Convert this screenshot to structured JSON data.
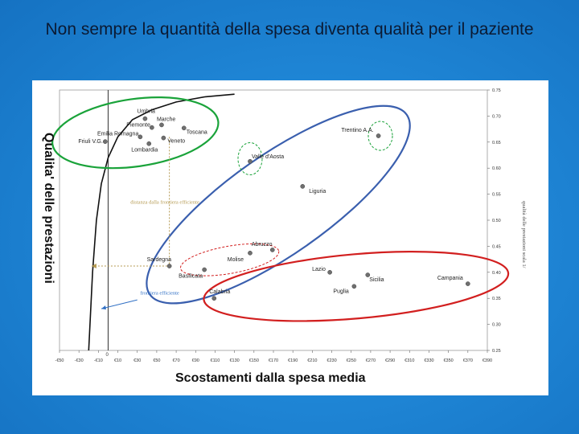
{
  "slide": {
    "title": "Non sempre la quantità della spesa diventa qualità per il paziente"
  },
  "colors": {
    "background": "#1f86d6",
    "frontier": "#111111",
    "green_group": "#1aa33a",
    "blue_group": "#3a5fae",
    "red_group": "#d21f1f",
    "annotation": "#b59a52",
    "annotation_blue": "#2f6fc4",
    "point": "#6f6f6f"
  },
  "chart_data": {
    "type": "scatter",
    "xlabel": "Scostamenti dalla spesa media",
    "ylabel": "Qualita' delle prestazioni",
    "y2label": "qualità delle prestazioni scala 1/",
    "x_ticks": [
      "-€50",
      "-€30",
      "-€10",
      "€10",
      "€30",
      "€50",
      "€70",
      "€90",
      "€110",
      "€130",
      "€150",
      "€170",
      "€190",
      "€210",
      "€230",
      "€250",
      "€270",
      "€290",
      "€310",
      "€330",
      "€350",
      "€370",
      "€390"
    ],
    "x_tick_values": [
      -50,
      -30,
      -10,
      10,
      30,
      50,
      70,
      90,
      110,
      130,
      150,
      170,
      190,
      210,
      230,
      250,
      270,
      290,
      310,
      330,
      350,
      370,
      390
    ],
    "y_ticks": [
      "0.25",
      "0.30",
      "0.35",
      "0.40",
      "0.45",
      "0.50",
      "0.55",
      "0.60",
      "0.65",
      "0.70",
      "0.75"
    ],
    "y_tick_values": [
      0.25,
      0.3,
      0.35,
      0.4,
      0.45,
      0.5,
      0.55,
      0.6,
      0.65,
      0.7,
      0.75
    ],
    "xlim": [
      -50,
      390
    ],
    "ylim": [
      0.25,
      0.75
    ],
    "zero_label": "0",
    "points": [
      {
        "label": "Umbria",
        "x": 38,
        "y": 0.695
      },
      {
        "label": "Marche",
        "x": 55,
        "y": 0.683
      },
      {
        "label": "Piemonte",
        "x": 45,
        "y": 0.678
      },
      {
        "label": "Toscana",
        "x": 78,
        "y": 0.677
      },
      {
        "label": "Emilia Romagna",
        "x": 33,
        "y": 0.66
      },
      {
        "label": "Veneto",
        "x": 57,
        "y": 0.658
      },
      {
        "label": "Friuli V.G.",
        "x": -3,
        "y": 0.651
      },
      {
        "label": "Lombardia",
        "x": 42,
        "y": 0.647
      },
      {
        "label": "Trentino A.A.",
        "x": 278,
        "y": 0.662
      },
      {
        "label": "Valle d'Aosta",
        "x": 146,
        "y": 0.613
      },
      {
        "label": "Liguria",
        "x": 200,
        "y": 0.565
      },
      {
        "label": "Abruzzo",
        "x": 169,
        "y": 0.443
      },
      {
        "label": "Molise",
        "x": 146,
        "y": 0.437
      },
      {
        "label": "Sardegna",
        "x": 63,
        "y": 0.412
      },
      {
        "label": "Basilicata",
        "x": 99,
        "y": 0.405
      },
      {
        "label": "Lazio",
        "x": 228,
        "y": 0.4
      },
      {
        "label": "Sicilia",
        "x": 267,
        "y": 0.395
      },
      {
        "label": "Puglia",
        "x": 253,
        "y": 0.373
      },
      {
        "label": "Campania",
        "x": 370,
        "y": 0.378
      },
      {
        "label": "Calabria",
        "x": 109,
        "y": 0.35
      }
    ],
    "annotations": {
      "distance": "distanza dalla frontiera efficiente",
      "frontier": "frontiera efficiente"
    }
  }
}
